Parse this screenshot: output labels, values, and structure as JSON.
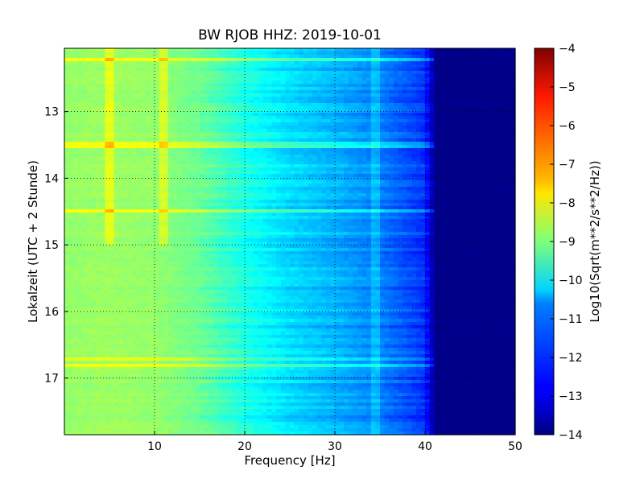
{
  "chart_data": {
    "type": "heatmap",
    "title": "BW RJOB HHZ: 2019-10-01",
    "xlabel": "Frequency [Hz]",
    "ylabel": "Lokalzeit (UTC + 2 Stunde)",
    "xlim": [
      0,
      50
    ],
    "ylim": [
      17.85,
      12.05
    ],
    "x_ticks": [
      10,
      20,
      30,
      40,
      50
    ],
    "x_tick_labels": [
      "10",
      "20",
      "30",
      "40",
      "50"
    ],
    "y_ticks": [
      13,
      14,
      15,
      16,
      17
    ],
    "y_tick_labels": [
      "13",
      "14",
      "15",
      "16",
      "17"
    ],
    "grid": true,
    "colormap": "jet",
    "colorbar": {
      "label": "Log10(Sqrt(m**2/s**2/Hz))",
      "range": [
        -14,
        -4
      ],
      "ticks": [
        -4,
        -5,
        -6,
        -7,
        -8,
        -9,
        -10,
        -11,
        -12,
        -13,
        -14
      ],
      "tick_labels": [
        "−4",
        "−5",
        "−6",
        "−7",
        "−8",
        "−9",
        "−10",
        "−11",
        "−12",
        "−13",
        "−14"
      ]
    },
    "spectral_profile": {
      "frequency_hz": [
        0,
        5,
        10,
        15,
        20,
        25,
        30,
        35,
        40,
        41,
        50
      ],
      "log10_amplitude": [
        -8.8,
        -8.7,
        -8.8,
        -9.2,
        -10.0,
        -10.6,
        -11.0,
        -11.5,
        -12.3,
        -13.8,
        -13.9
      ]
    },
    "annotations_features": {
      "narrowband_line_hz": [
        5.0,
        11.0
      ],
      "broadband_events_local_time": [
        12.22,
        13.5,
        14.5,
        16.7,
        16.82
      ],
      "tonal_wiggle_hz": 34.5
    }
  },
  "colors": {
    "background": "#ffffff",
    "axis": "#000000",
    "grid": "#000000"
  }
}
